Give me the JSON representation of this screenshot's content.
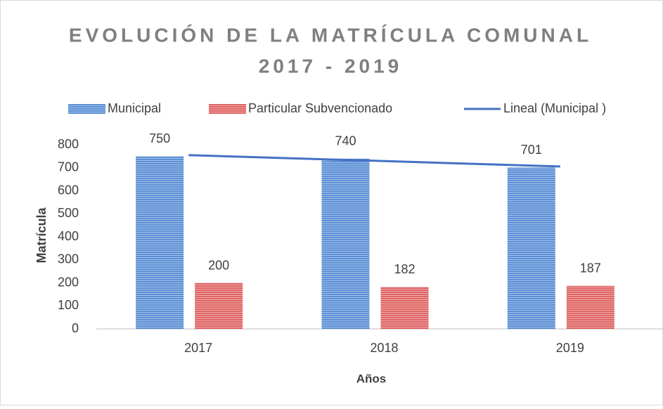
{
  "chart_data": {
    "type": "bar",
    "title": [
      "EVOLUCIÓN DE LA MATRÍCULA COMUNAL",
      "2017 - 2019"
    ],
    "categories": [
      "2017",
      "2018",
      "2019"
    ],
    "series": [
      {
        "name": "Municipal",
        "color": "#5b8fd6",
        "values": [
          750,
          740,
          701
        ]
      },
      {
        "name": "Particular Subvencionado",
        "color": "#e06464",
        "values": [
          200,
          182,
          187
        ]
      },
      {
        "name": "Lineal (Municipal )",
        "color": "#4472c4",
        "type": "line",
        "values": [
          754.8,
          730.3,
          705.8
        ]
      }
    ],
    "ylim": [
      0,
      800
    ],
    "yticks": [
      0,
      100,
      200,
      300,
      400,
      500,
      600,
      700,
      800
    ],
    "y_label": "Matrícula",
    "x_label": "Años",
    "grid": false,
    "legend": "top"
  }
}
